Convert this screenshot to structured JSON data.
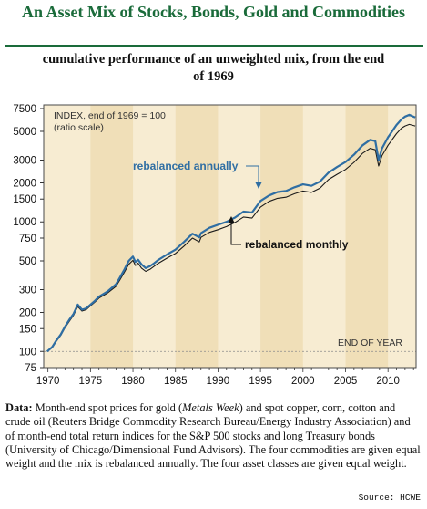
{
  "title": "An Asset Mix of Stocks, Bonds, Gold and Commodities",
  "subtitle_line1": "cumulative performance of an unweighted mix, from the end",
  "subtitle_line2": "of 1969",
  "footnote": {
    "label": "Data:",
    "text1": " Month-end spot prices for gold (",
    "italic": "Metals Week",
    "text2": ") and spot copper, corn, cotton and crude oil (Reuters Bridge Commodity Research Bureau/Energy Industry Association) and of month-end total return indices for the S&P 500 stocks and long Treasury bonds (University of Chicago/Dimensional Fund Advisors). The four commodities are given equal weight and the mix is rebalanced annually. The four asset classes are given equal weight."
  },
  "source": "Source: HCWE",
  "colors": {
    "title": "#1a6b3a",
    "band_light": "#f7ecd2",
    "band_dark": "#f0dfb8",
    "annual_line": "#2f6ea3",
    "monthly_line": "#1a1a1a",
    "frame": "#4a4a4a"
  },
  "chart_data": {
    "type": "line",
    "y_scale": "log",
    "ylim": [
      75,
      8000
    ],
    "xlim": [
      1969.5,
      2013.3
    ],
    "y_ticks": [
      75,
      100,
      150,
      200,
      300,
      500,
      750,
      1000,
      1500,
      2000,
      3000,
      5000,
      7500
    ],
    "x_ticks": [
      1970,
      1975,
      1980,
      1985,
      1990,
      1995,
      2000,
      2005,
      2010
    ],
    "grid": false,
    "index_note_line1": "INDEX, end of 1969 = 100",
    "index_note_line2": "(ratio scale)",
    "baseline_label": "END OF YEAR",
    "baseline_value": 100,
    "series": [
      {
        "name": "rebalanced annually",
        "x": [
          1969.9,
          1970.5,
          1971,
          1971.5,
          1972,
          1972.5,
          1973,
          1973.5,
          1974,
          1974.5,
          1975,
          1975.5,
          1976,
          1977,
          1978,
          1978.5,
          1979,
          1979.5,
          1980,
          1980.3,
          1980.6,
          1981,
          1981.5,
          1982,
          1982.5,
          1983,
          1984,
          1985,
          1986,
          1987,
          1987.8,
          1988,
          1989,
          1990,
          1991,
          1992,
          1993,
          1994,
          1995,
          1996,
          1997,
          1998,
          1999,
          2000,
          2001,
          2002,
          2003,
          2004,
          2005,
          2006,
          2007,
          2007.9,
          2008.5,
          2008.9,
          2009.3,
          2010,
          2011,
          2011.6,
          2012,
          2012.5,
          2013.2
        ],
        "values": [
          100,
          108,
          122,
          135,
          155,
          175,
          195,
          230,
          210,
          215,
          230,
          245,
          265,
          290,
          330,
          375,
          430,
          500,
          540,
          490,
          510,
          470,
          440,
          455,
          480,
          510,
          560,
          610,
          700,
          810,
          760,
          820,
          900,
          950,
          1000,
          1080,
          1200,
          1180,
          1450,
          1600,
          1700,
          1730,
          1850,
          1950,
          1900,
          2050,
          2400,
          2650,
          2900,
          3300,
          3900,
          4300,
          4200,
          3000,
          3700,
          4500,
          5600,
          6200,
          6500,
          6700,
          6400
        ]
      },
      {
        "name": "rebalanced monthly",
        "x": [
          1969.9,
          1970.5,
          1971,
          1971.5,
          1972,
          1972.5,
          1973,
          1973.5,
          1974,
          1974.5,
          1975,
          1975.5,
          1976,
          1977,
          1978,
          1978.5,
          1979,
          1979.5,
          1980,
          1980.3,
          1980.6,
          1981,
          1981.5,
          1982,
          1982.5,
          1983,
          1984,
          1985,
          1986,
          1987,
          1987.8,
          1988,
          1989,
          1990,
          1991,
          1992,
          1993,
          1994,
          1995,
          1996,
          1997,
          1998,
          1999,
          2000,
          2001,
          2002,
          2003,
          2004,
          2005,
          2006,
          2007,
          2007.9,
          2008.5,
          2008.9,
          2009.3,
          2010,
          2011,
          2011.6,
          2012,
          2012.5,
          2013.2
        ],
        "values": [
          100,
          107,
          120,
          133,
          152,
          170,
          190,
          222,
          205,
          210,
          225,
          240,
          258,
          282,
          318,
          360,
          410,
          470,
          505,
          460,
          480,
          440,
          415,
          430,
          455,
          480,
          525,
          570,
          650,
          750,
          700,
          760,
          830,
          870,
          920,
          990,
          1090,
          1070,
          1300,
          1440,
          1520,
          1550,
          1650,
          1730,
          1690,
          1820,
          2120,
          2330,
          2540,
          2880,
          3380,
          3700,
          3600,
          2700,
          3250,
          3900,
          4800,
          5300,
          5500,
          5650,
          5500
        ]
      }
    ]
  }
}
